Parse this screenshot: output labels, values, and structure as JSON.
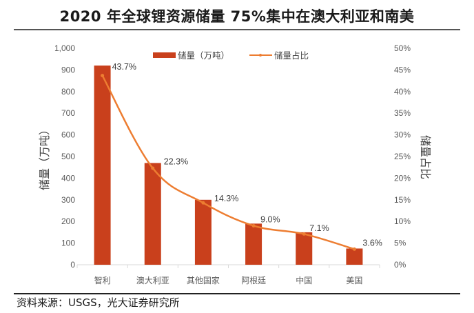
{
  "title": "2020 年全球锂资源储量 75%集中在澳大利亚和南美",
  "source": "资料来源：USGS，光大证券研究所",
  "colors": {
    "bar": "#c9401c",
    "line": "#ed7d31",
    "axis": "#d9d9d9"
  },
  "chart_data": {
    "type": "bar+line",
    "title": "2020 年全球锂资源储量 75%集中在澳大利亚和南美",
    "categories": [
      "智利",
      "澳大利亚",
      "其他国家",
      "阿根廷",
      "中国",
      "美国"
    ],
    "series": [
      {
        "name": "储量（万吨）",
        "type": "bar",
        "axis": "left",
        "values": [
          920,
          470,
          300,
          190,
          150,
          75
        ]
      },
      {
        "name": "储量占比",
        "type": "line",
        "axis": "right",
        "values": [
          43.7,
          22.3,
          14.3,
          9.0,
          7.1,
          3.6
        ],
        "labels": [
          "43.7%",
          "22.3%",
          "14.3%",
          "9.0%",
          "7.1%",
          "3.6%"
        ]
      }
    ],
    "ylabel": "储量（万吨）",
    "y2label": "储量占比",
    "ylim": [
      0,
      1000
    ],
    "y2lim": [
      0,
      50
    ],
    "yticks": [
      "0",
      "100",
      "200",
      "300",
      "400",
      "500",
      "600",
      "700",
      "800",
      "900",
      "1,000"
    ],
    "y2ticks": [
      "0%",
      "5%",
      "10%",
      "15%",
      "20%",
      "25%",
      "30%",
      "35%",
      "40%",
      "45%",
      "50%"
    ],
    "legend": [
      "储量（万吨）",
      "储量占比"
    ],
    "legend_position": "top-center",
    "grid": false
  }
}
